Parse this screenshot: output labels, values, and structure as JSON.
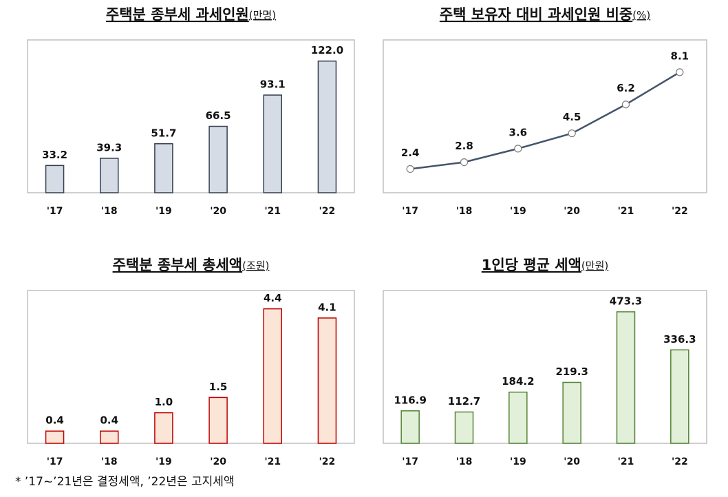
{
  "chart_data": [
    {
      "type": "bar",
      "title": "주택분 종부세 과세인원",
      "unit": "(만명)",
      "categories": [
        "'17",
        "'18",
        "'19",
        "'20",
        "'21",
        "'22"
      ],
      "values": [
        33.2,
        39.3,
        51.7,
        66.5,
        93.1,
        122.0
      ],
      "value_labels": [
        "33.2",
        "39.3",
        "51.7",
        "66.5",
        "93.1",
        "122.0"
      ],
      "ylim": [
        10,
        140
      ],
      "color": "#d6dce5",
      "edgecolor": "#333f50"
    },
    {
      "type": "line",
      "title": "주택 보유자 대비 과세인원 비중",
      "unit": "(%)",
      "categories": [
        "'17",
        "'18",
        "'19",
        "'20",
        "'21",
        "'22"
      ],
      "values": [
        2.4,
        2.8,
        3.6,
        4.5,
        6.2,
        8.1
      ],
      "ylim": [
        1,
        10
      ],
      "color": "#44546a",
      "marker_facecolor": "#ffffff"
    },
    {
      "type": "bar",
      "title": "주택분 종부세 총세액",
      "unit": "(조원)",
      "categories": [
        "'17",
        "'18",
        "'19",
        "'20",
        "'21",
        "'22"
      ],
      "values": [
        0.4,
        0.4,
        1.0,
        1.5,
        4.4,
        4.1
      ],
      "value_labels": [
        "0.4",
        "0.4",
        "1.0",
        "1.5",
        "4.4",
        "4.1"
      ],
      "ylim": [
        0,
        5
      ],
      "color": "#fbe5d6",
      "edgecolor": "#c00000"
    },
    {
      "type": "bar",
      "title": "1인당 평균 세액",
      "unit": "(만원)",
      "categories": [
        "'17",
        "'18",
        "'19",
        "'20",
        "'21",
        "'22"
      ],
      "values": [
        116.9,
        112.7,
        184.2,
        219.3,
        473.3,
        336.3
      ],
      "ylim": [
        0,
        550
      ],
      "color": "#e2f0d9",
      "edgecolor": "#548235"
    }
  ],
  "footnote": "*  ’17~’21년은 결정세액, ’22년은 고지세액"
}
